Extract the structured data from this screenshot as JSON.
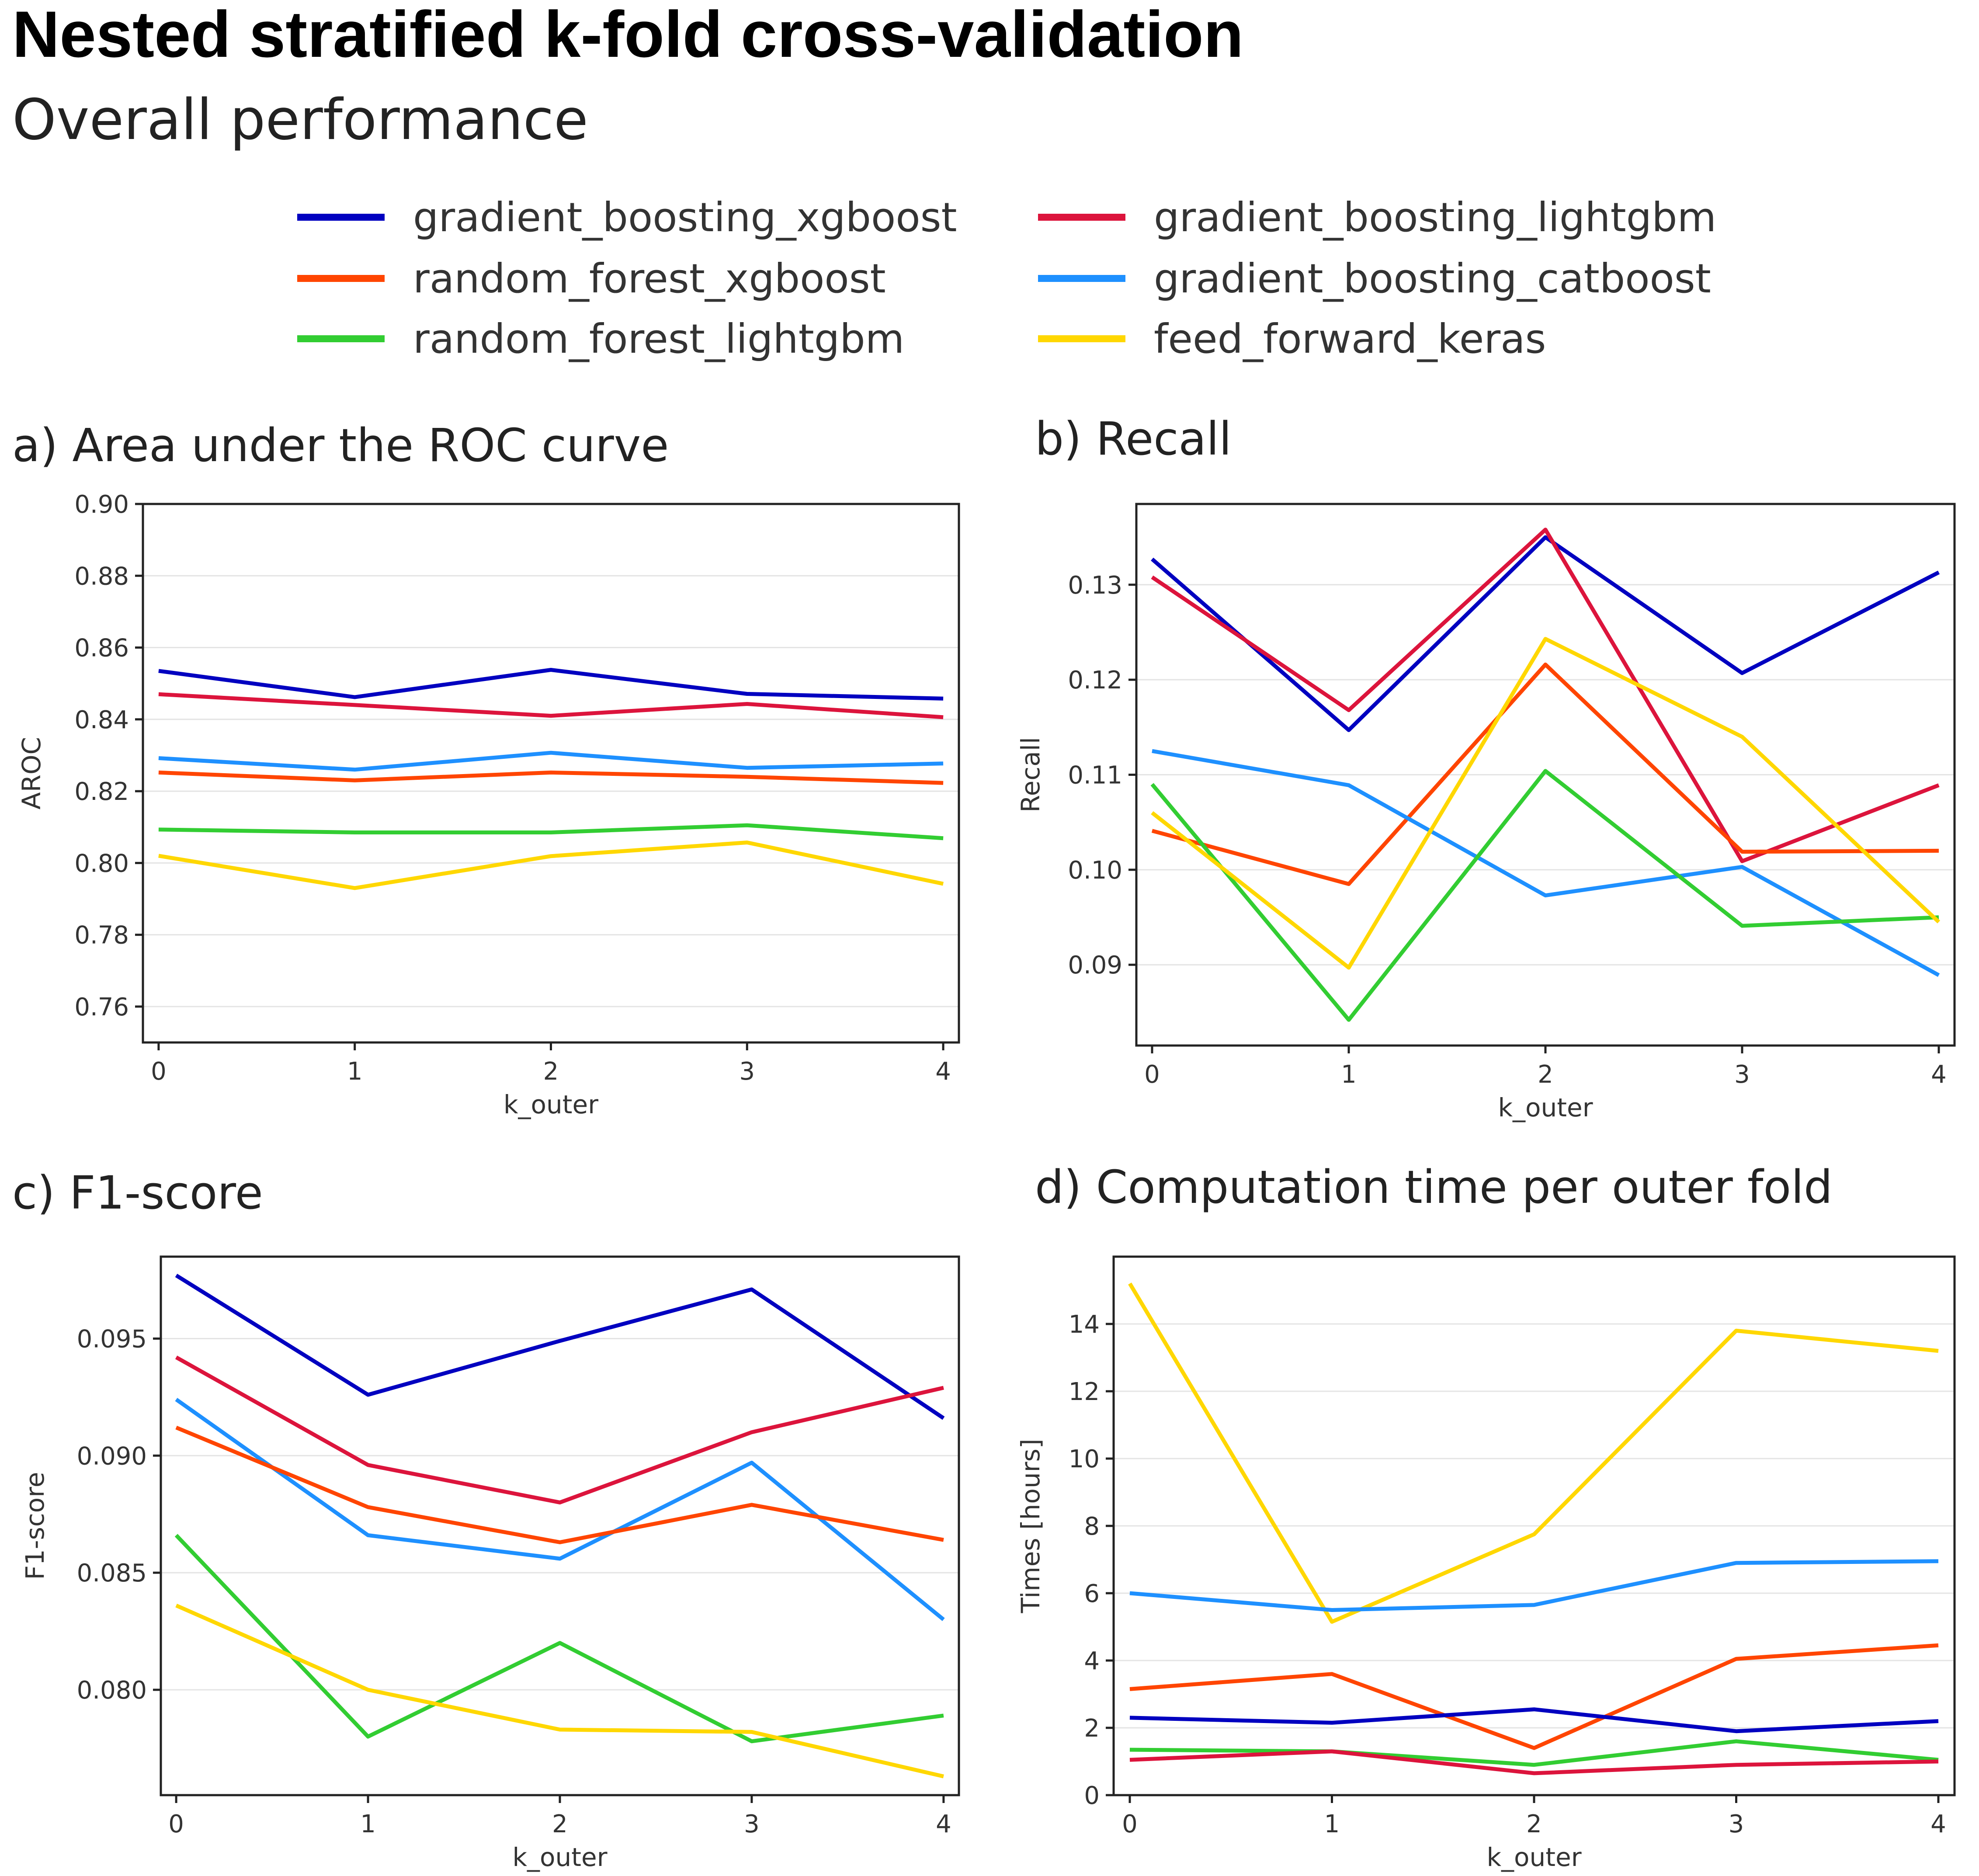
{
  "title": "Nested stratified k-fold cross-validation",
  "subtitle": "Overall performance",
  "legend": [
    {
      "label": "gradient_boosting_xgboost",
      "color": "#0000c0"
    },
    {
      "label": "gradient_boosting_lightgbm",
      "color": "#dc143c"
    },
    {
      "label": "random_forest_xgboost",
      "color": "#ff4500"
    },
    {
      "label": "gradient_boosting_catboost",
      "color": "#1e90ff"
    },
    {
      "label": "random_forest_lightgbm",
      "color": "#32cd32"
    },
    {
      "label": "feed_forward_keras",
      "color": "#ffd700"
    }
  ],
  "chart_data": [
    {
      "id": "a",
      "type": "line",
      "title": "a) Area under the ROC curve",
      "xlabel": "k_outer",
      "ylabel": "AROC",
      "x": [
        0,
        1,
        2,
        3,
        4
      ],
      "xticks": [
        "0",
        "1",
        "2",
        "3",
        "4"
      ],
      "xlim": [
        -0.08,
        4.08
      ],
      "ylim": [
        0.75,
        0.9
      ],
      "yticks": [
        0.76,
        0.78,
        0.8,
        0.82,
        0.84,
        0.86,
        0.88,
        0.9
      ],
      "yticklabels": [
        "0.76",
        "0.78",
        "0.80",
        "0.82",
        "0.84",
        "0.86",
        "0.88",
        "0.90"
      ],
      "grid": true,
      "series": [
        {
          "name": "gradient_boosting_xgboost",
          "color": "#0000c0",
          "values": [
            0.8535,
            0.8462,
            0.8538,
            0.8471,
            0.8458
          ]
        },
        {
          "name": "gradient_boosting_lightgbm",
          "color": "#dc143c",
          "values": [
            0.847,
            0.844,
            0.841,
            0.8443,
            0.8406
          ]
        },
        {
          "name": "gradient_boosting_catboost",
          "color": "#1e90ff",
          "values": [
            0.8292,
            0.826,
            0.8307,
            0.8265,
            0.8277
          ]
        },
        {
          "name": "random_forest_xgboost",
          "color": "#ff4500",
          "values": [
            0.8252,
            0.823,
            0.8252,
            0.824,
            0.8223
          ]
        },
        {
          "name": "random_forest_lightgbm",
          "color": "#32cd32",
          "values": [
            0.8093,
            0.8085,
            0.8085,
            0.8105,
            0.8069
          ]
        },
        {
          "name": "feed_forward_keras",
          "color": "#ffd700",
          "values": [
            0.802,
            0.793,
            0.8019,
            0.8057,
            0.7942
          ]
        }
      ]
    },
    {
      "id": "b",
      "type": "line",
      "title": "b) Recall",
      "xlabel": "k_outer",
      "ylabel": "Recall",
      "x": [
        0,
        1,
        2,
        3,
        4
      ],
      "xticks": [
        "0",
        "1",
        "2",
        "3",
        "4"
      ],
      "xlim": [
        -0.08,
        4.08
      ],
      "ylim": [
        0.0815,
        0.1385
      ],
      "yticks": [
        0.09,
        0.1,
        0.11,
        0.12,
        0.13
      ],
      "yticklabels": [
        "0.09",
        "0.10",
        "0.11",
        "0.12",
        "0.13"
      ],
      "grid": true,
      "series": [
        {
          "name": "gradient_boosting_xgboost",
          "color": "#0000c0",
          "values": [
            0.1327,
            0.1147,
            0.135,
            0.1207,
            0.1313
          ]
        },
        {
          "name": "gradient_boosting_lightgbm",
          "color": "#dc143c",
          "values": [
            0.1308,
            0.1168,
            0.1358,
            0.1009,
            0.1089
          ]
        },
        {
          "name": "random_forest_xgboost",
          "color": "#ff4500",
          "values": [
            0.1041,
            0.0985,
            0.1216,
            0.1019,
            0.102
          ]
        },
        {
          "name": "gradient_boosting_catboost",
          "color": "#1e90ff",
          "values": [
            0.1125,
            0.1089,
            0.0973,
            0.1003,
            0.0889
          ]
        },
        {
          "name": "random_forest_lightgbm",
          "color": "#32cd32",
          "values": [
            0.109,
            0.0842,
            0.1104,
            0.0941,
            0.095
          ]
        },
        {
          "name": "feed_forward_keras",
          "color": "#ffd700",
          "values": [
            0.106,
            0.0897,
            0.1243,
            0.114,
            0.0945
          ]
        }
      ]
    },
    {
      "id": "c",
      "type": "line",
      "title": "c) F1-score",
      "xlabel": "k_outer",
      "ylabel": "F1-score",
      "x": [
        0,
        1,
        2,
        3,
        4
      ],
      "xticks": [
        "0",
        "1",
        "2",
        "3",
        "4"
      ],
      "xlim": [
        -0.08,
        4.08
      ],
      "ylim": [
        0.0755,
        0.0985
      ],
      "yticks": [
        0.08,
        0.085,
        0.09,
        0.095
      ],
      "yticklabels": [
        "0.080",
        "0.085",
        "0.090",
        "0.095"
      ],
      "grid": true,
      "series": [
        {
          "name": "gradient_boosting_xgboost",
          "color": "#0000c0",
          "values": [
            0.0977,
            0.0926,
            0.0949,
            0.0971,
            0.0916
          ]
        },
        {
          "name": "gradient_boosting_lightgbm",
          "color": "#dc143c",
          "values": [
            0.0942,
            0.0896,
            0.088,
            0.091,
            0.0929
          ]
        },
        {
          "name": "gradient_boosting_catboost",
          "color": "#1e90ff",
          "values": [
            0.0924,
            0.0866,
            0.0856,
            0.0897,
            0.083
          ]
        },
        {
          "name": "random_forest_xgboost",
          "color": "#ff4500",
          "values": [
            0.0912,
            0.0878,
            0.0863,
            0.0879,
            0.0864
          ]
        },
        {
          "name": "random_forest_lightgbm",
          "color": "#32cd32",
          "values": [
            0.0866,
            0.078,
            0.082,
            0.0778,
            0.0789
          ]
        },
        {
          "name": "feed_forward_keras",
          "color": "#ffd700",
          "values": [
            0.0836,
            0.08,
            0.0783,
            0.0782,
            0.0763
          ]
        }
      ]
    },
    {
      "id": "d",
      "type": "line",
      "title": "d) Computation time per outer fold",
      "xlabel": "k_outer",
      "ylabel": "Times [hours]",
      "x": [
        0,
        1,
        2,
        3,
        4
      ],
      "xticks": [
        "0",
        "1",
        "2",
        "3",
        "4"
      ],
      "xlim": [
        -0.08,
        4.08
      ],
      "ylim": [
        0,
        16
      ],
      "yticks": [
        0,
        2,
        4,
        6,
        8,
        10,
        12,
        14
      ],
      "yticklabels": [
        "0",
        "2",
        "4",
        "6",
        "8",
        "10",
        "12",
        "14"
      ],
      "grid": true,
      "series": [
        {
          "name": "feed_forward_keras",
          "color": "#ffd700",
          "values": [
            15.2,
            5.15,
            7.75,
            13.8,
            13.2
          ]
        },
        {
          "name": "gradient_boosting_catboost",
          "color": "#1e90ff",
          "values": [
            6.0,
            5.5,
            5.65,
            6.9,
            6.95
          ]
        },
        {
          "name": "random_forest_xgboost",
          "color": "#ff4500",
          "values": [
            3.15,
            3.6,
            1.4,
            4.05,
            4.45
          ]
        },
        {
          "name": "gradient_boosting_xgboost",
          "color": "#0000c0",
          "values": [
            2.3,
            2.15,
            2.55,
            1.9,
            2.2
          ]
        },
        {
          "name": "random_forest_lightgbm",
          "color": "#32cd32",
          "values": [
            1.35,
            1.3,
            0.9,
            1.6,
            1.05
          ]
        },
        {
          "name": "gradient_boosting_lightgbm",
          "color": "#dc143c",
          "values": [
            1.05,
            1.3,
            0.65,
            0.9,
            1.0
          ]
        }
      ]
    }
  ]
}
